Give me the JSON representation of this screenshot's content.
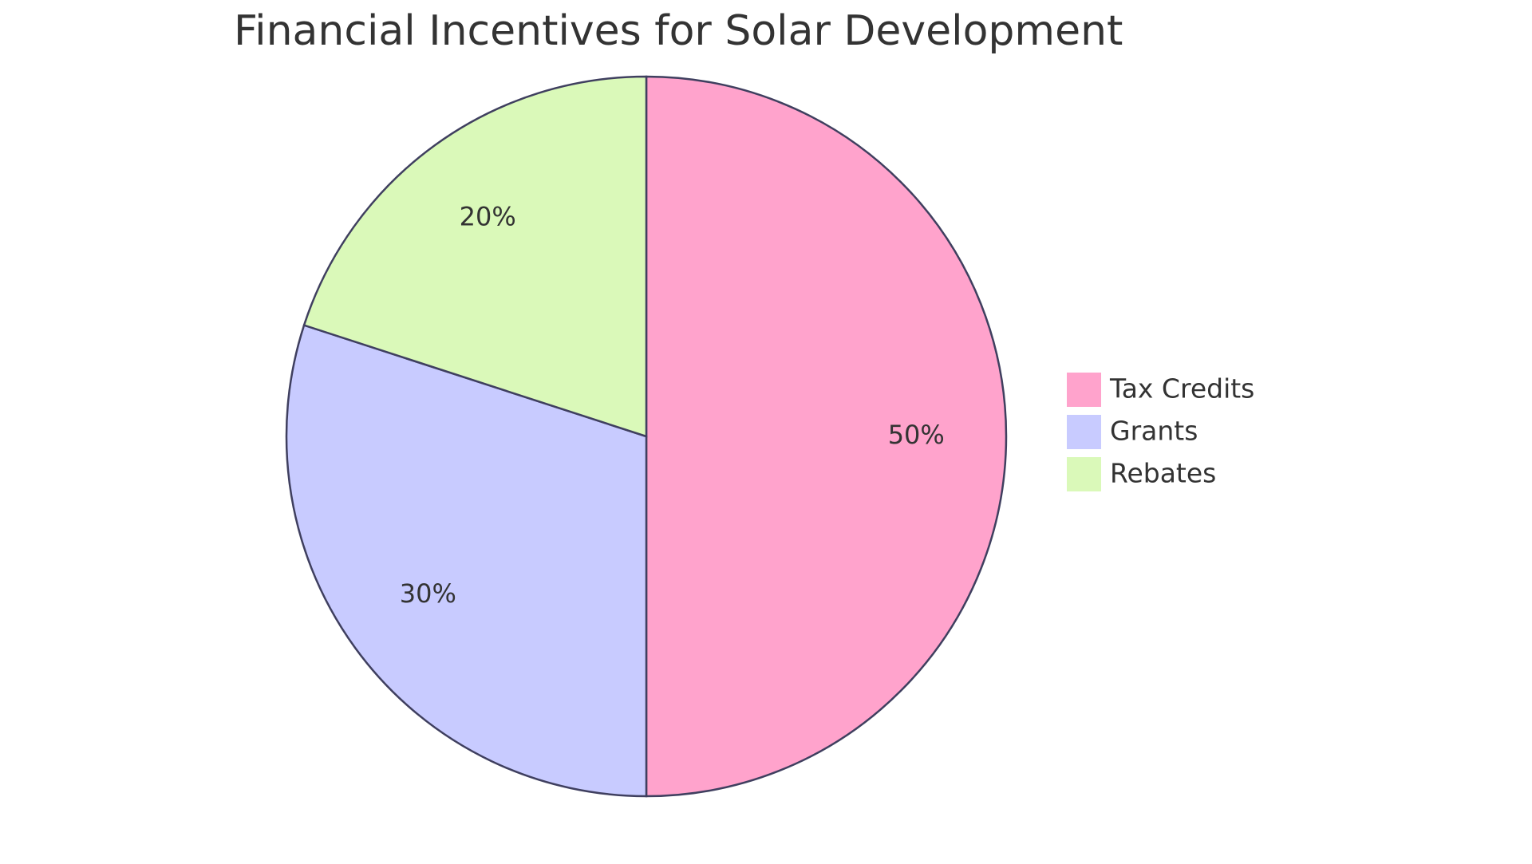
{
  "chart_data": {
    "type": "pie",
    "title": "Financial Incentives for Solar Development",
    "categories": [
      "Tax Credits",
      "Grants",
      "Rebates"
    ],
    "values": [
      50,
      30,
      20
    ],
    "value_labels": [
      "50%",
      "30%",
      "20%"
    ],
    "colors": [
      "#ffa3cc",
      "#c8cbff",
      "#daf9b9"
    ],
    "legend": "right"
  }
}
